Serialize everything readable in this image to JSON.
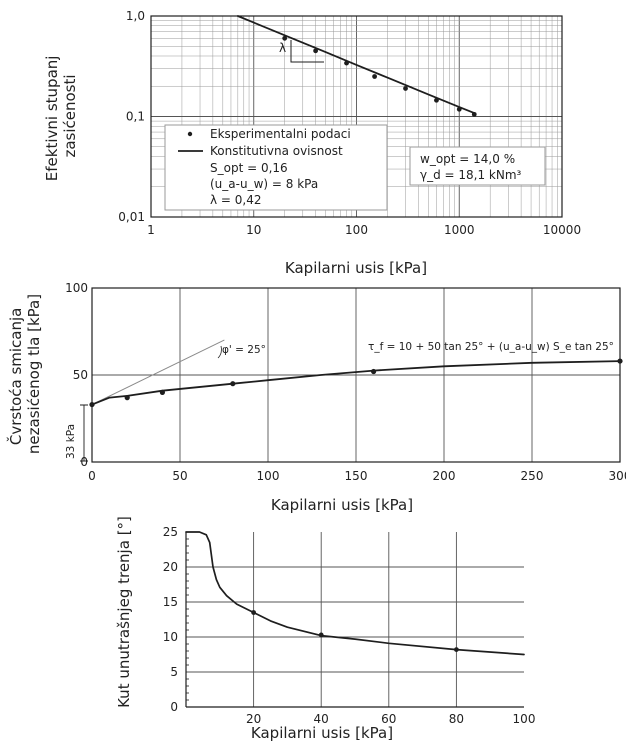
{
  "colors": {
    "ink": "#1e1e1e",
    "grid": "#555555",
    "minorGrid": "#9a9a9a",
    "guide": "#8a8a8a"
  },
  "charts": [
    {
      "type": "scatter",
      "xscale": "log",
      "yscale": "log",
      "xlim": [
        1,
        10000
      ],
      "ylim": [
        0.01,
        1
      ],
      "xticks": [
        "1",
        "10",
        "100",
        "1000",
        "10000"
      ],
      "yticks": [
        "0,01",
        "0,1",
        "1,0"
      ],
      "xlabel": "Kapilarni usis [kPa]",
      "ylabel": [
        "Efektivni stupanj",
        "zasićenosti"
      ],
      "legend": {
        "points_label": "Eksperimentalni podaci",
        "line_label": "Konstitutivna ovisnost",
        "params": [
          "S_opt = 0,16",
          "(u_a-u_w) = 8 kPa",
          "λ = 0,42"
        ]
      },
      "info_box": [
        "w_opt = 14,0 %",
        "γ_d = 18,1 kNm³"
      ],
      "slope_label": "λ",
      "points": [
        [
          20,
          0.6
        ],
        [
          40,
          0.45
        ],
        [
          80,
          0.34
        ],
        [
          150,
          0.25
        ],
        [
          300,
          0.19
        ],
        [
          600,
          0.145
        ],
        [
          1000,
          0.118
        ],
        [
          1400,
          0.105
        ]
      ],
      "line": [
        [
          7,
          1.0
        ],
        [
          20,
          0.643
        ],
        [
          50,
          0.437
        ],
        [
          100,
          0.326
        ],
        [
          200,
          0.244
        ],
        [
          500,
          0.166
        ],
        [
          1000,
          0.124
        ],
        [
          1400,
          0.108
        ]
      ]
    },
    {
      "type": "line",
      "xlim": [
        0,
        300
      ],
      "ylim": [
        0,
        100
      ],
      "xticks": [
        "0",
        "50",
        "100",
        "150",
        "200",
        "250",
        "300"
      ],
      "yticks": [
        "0",
        "50",
        "100"
      ],
      "xlabel": "Kapilarni usis [kPa]",
      "ylabel": [
        "Čvrstoća smicanja",
        "nezasićenog tla [kPa]"
      ],
      "annotations": {
        "cohesion": "33 kPa",
        "phi": "φ' = 25°",
        "equation": "τ_f = 10 + 50 tan 25° + (u_a-u_w) S_e tan 25°"
      },
      "points": [
        [
          0,
          33
        ],
        [
          20,
          37
        ],
        [
          40,
          40
        ],
        [
          80,
          45
        ],
        [
          160,
          52
        ],
        [
          300,
          58
        ]
      ],
      "line": [
        [
          0,
          33
        ],
        [
          10,
          37
        ],
        [
          20,
          38
        ],
        [
          40,
          41
        ],
        [
          60,
          43
        ],
        [
          80,
          45
        ],
        [
          100,
          47
        ],
        [
          130,
          50
        ],
        [
          160,
          52.5
        ],
        [
          200,
          55
        ],
        [
          250,
          57
        ],
        [
          300,
          58
        ]
      ],
      "guide_line": [
        [
          0,
          33
        ],
        [
          75,
          70
        ]
      ]
    },
    {
      "type": "line",
      "xlim": [
        0,
        100
      ],
      "ylim": [
        0,
        25
      ],
      "xticks": [
        "20",
        "40",
        "60",
        "80",
        "100"
      ],
      "yticks": [
        "0",
        "5",
        "10",
        "15",
        "20",
        "25"
      ],
      "xlabel": "Kapilarni usis [kPa]",
      "ylabel": [
        "Kut unutrašnjeg trenja [°]"
      ],
      "points": [
        [
          20,
          13.5
        ],
        [
          40,
          10.3
        ],
        [
          80,
          8.2
        ]
      ],
      "line": [
        [
          0,
          25
        ],
        [
          4,
          25
        ],
        [
          6,
          24.6
        ],
        [
          7,
          23.5
        ],
        [
          8,
          20
        ],
        [
          9,
          18.2
        ],
        [
          10,
          17.1
        ],
        [
          12,
          15.9
        ],
        [
          15,
          14.7
        ],
        [
          20,
          13.5
        ],
        [
          25,
          12.3
        ],
        [
          30,
          11.4
        ],
        [
          40,
          10.2
        ],
        [
          50,
          9.7
        ],
        [
          60,
          9.1
        ],
        [
          80,
          8.2
        ],
        [
          100,
          7.5
        ]
      ]
    }
  ]
}
